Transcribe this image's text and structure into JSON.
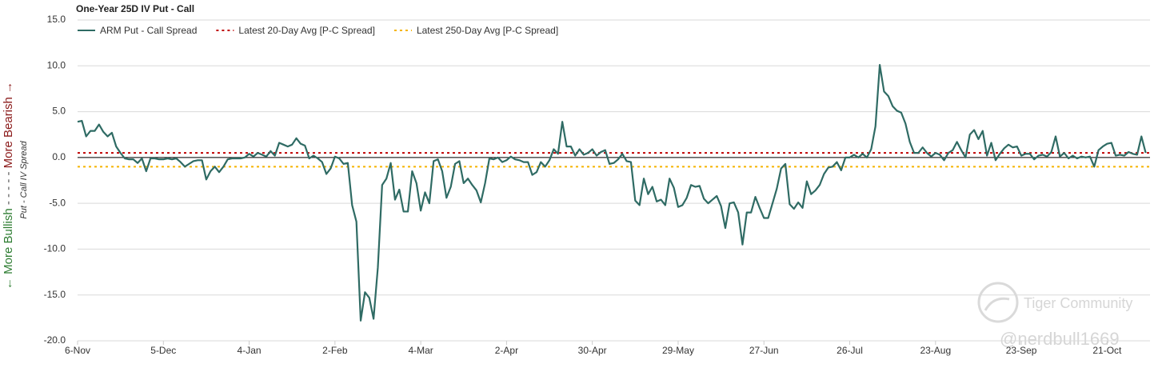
{
  "chart_data": {
    "type": "line",
    "title": "One-Year 25D IV Put - Call",
    "y_label": "Put - Call IV Spread",
    "bullish_label": "← More Bullish",
    "separator_label": "- - - - -",
    "bearish_label": "More Bearish →",
    "watermarks": [
      "Tiger Community",
      "@nerdbull1669"
    ],
    "grid": true,
    "ylim": [
      -20,
      15
    ],
    "yticks": [
      {
        "value": 15,
        "label": "15.0"
      },
      {
        "value": 10,
        "label": "10.0"
      },
      {
        "value": 5,
        "label": "5.0"
      },
      {
        "value": 0,
        "label": "0.0"
      },
      {
        "value": -5,
        "label": "-5.0"
      },
      {
        "value": -10,
        "label": "-10.0"
      },
      {
        "value": -15,
        "label": "-15.0"
      },
      {
        "value": -20,
        "label": "-20.0"
      }
    ],
    "categories": [
      "6-Nov",
      null,
      null,
      null,
      null,
      null,
      null,
      null,
      null,
      null,
      null,
      null,
      null,
      null,
      null,
      null,
      null,
      null,
      null,
      null,
      "5-Dec",
      null,
      null,
      null,
      null,
      null,
      null,
      null,
      null,
      null,
      null,
      null,
      null,
      null,
      null,
      null,
      null,
      null,
      null,
      null,
      "4-Jan",
      null,
      null,
      null,
      null,
      null,
      null,
      null,
      null,
      null,
      null,
      null,
      null,
      null,
      null,
      null,
      null,
      null,
      null,
      null,
      "2-Feb",
      null,
      null,
      null,
      null,
      null,
      null,
      null,
      null,
      null,
      null,
      null,
      null,
      null,
      null,
      null,
      null,
      null,
      null,
      null,
      "4-Mar",
      null,
      null,
      null,
      null,
      null,
      null,
      null,
      null,
      null,
      null,
      null,
      null,
      null,
      null,
      null,
      null,
      null,
      null,
      null,
      "2-Apr",
      null,
      null,
      null,
      null,
      null,
      null,
      null,
      null,
      null,
      null,
      null,
      null,
      null,
      null,
      null,
      null,
      null,
      null,
      null,
      "30-Apr",
      null,
      null,
      null,
      null,
      null,
      null,
      null,
      null,
      null,
      null,
      null,
      null,
      null,
      null,
      null,
      null,
      null,
      null,
      null,
      "29-May",
      null,
      null,
      null,
      null,
      null,
      null,
      null,
      null,
      null,
      null,
      null,
      null,
      null,
      null,
      null,
      null,
      null,
      null,
      null,
      "27-Jun",
      null,
      null,
      null,
      null,
      null,
      null,
      null,
      null,
      null,
      null,
      null,
      null,
      null,
      null,
      null,
      null,
      null,
      null,
      null,
      "26-Jul",
      null,
      null,
      null,
      null,
      null,
      null,
      null,
      null,
      null,
      null,
      null,
      null,
      null,
      null,
      null,
      null,
      null,
      null,
      null,
      "23-Aug",
      null,
      null,
      null,
      null,
      null,
      null,
      null,
      null,
      null,
      null,
      null,
      null,
      null,
      null,
      null,
      null,
      null,
      null,
      null,
      "23-Sep",
      null,
      null,
      null,
      null,
      null,
      null,
      null,
      null,
      null,
      null,
      null,
      null,
      null,
      null,
      null,
      null,
      null,
      null,
      null,
      "21-Oct",
      null,
      null,
      null,
      null,
      null,
      null,
      null,
      null,
      null
    ],
    "series": [
      {
        "name": "ARM Put - Call Spread",
        "color": "#2f6b64",
        "values": [
          3.9,
          4.0,
          2.3,
          2.9,
          2.9,
          3.6,
          2.8,
          2.3,
          2.7,
          1.2,
          0.5,
          -0.1,
          -0.2,
          -0.2,
          -0.6,
          -0.1,
          -1.5,
          -0.1,
          -0.1,
          -0.2,
          -0.2,
          -0.1,
          -0.2,
          -0.1,
          -0.5,
          -1.0,
          -0.7,
          -0.4,
          -0.3,
          -0.3,
          -2.4,
          -1.5,
          -1.0,
          -1.6,
          -1.0,
          -0.2,
          -0.1,
          -0.1,
          -0.1,
          0.0,
          0.4,
          0.1,
          0.5,
          0.3,
          0.1,
          0.7,
          0.2,
          1.6,
          1.4,
          1.2,
          1.4,
          2.1,
          1.5,
          1.3,
          -0.1,
          0.2,
          -0.1,
          -0.5,
          -1.8,
          -1.2,
          0.1,
          -0.1,
          -0.7,
          -0.6,
          -5.2,
          -7.0,
          -17.8,
          -14.7,
          -15.3,
          -17.6,
          -12.0,
          -3.0,
          -2.3,
          -0.6,
          -4.6,
          -3.5,
          -5.9,
          -5.9,
          -1.5,
          -2.8,
          -5.8,
          -3.8,
          -5.0,
          -0.4,
          -0.2,
          -1.5,
          -4.4,
          -3.2,
          -0.7,
          -0.4,
          -2.8,
          -2.3,
          -3.0,
          -3.6,
          -4.9,
          -2.8,
          -0.1,
          -0.2,
          0.0,
          -0.5,
          -0.3,
          0.1,
          -0.2,
          -0.3,
          -0.5,
          -0.5,
          -1.9,
          -1.6,
          -0.5,
          -1.0,
          -0.3,
          0.9,
          0.4,
          3.9,
          1.2,
          1.2,
          0.2,
          0.9,
          0.3,
          0.5,
          0.9,
          0.2,
          0.6,
          0.8,
          -0.7,
          -0.6,
          -0.2,
          0.4,
          -0.4,
          -0.5,
          -4.7,
          -5.2,
          -2.3,
          -4.0,
          -3.2,
          -4.8,
          -4.6,
          -5.2,
          -2.3,
          -3.3,
          -5.4,
          -5.2,
          -4.4,
          -3.0,
          -3.2,
          -3.1,
          -4.5,
          -5.0,
          -4.6,
          -4.2,
          -5.3,
          -7.7,
          -5.0,
          -4.9,
          -6.0,
          -9.5,
          -6.0,
          -6.0,
          -4.3,
          -5.5,
          -6.6,
          -6.6,
          -5.0,
          -3.4,
          -1.2,
          -0.7,
          -5.1,
          -5.6,
          -4.9,
          -5.5,
          -2.6,
          -4.0,
          -3.6,
          -3.0,
          -1.8,
          -1.1,
          -1.0,
          -0.5,
          -1.4,
          0.0,
          0.0,
          0.3,
          0.0,
          0.4,
          0.0,
          0.9,
          3.4,
          10.1,
          7.2,
          6.7,
          5.6,
          5.1,
          4.9,
          3.7,
          1.7,
          0.5,
          0.5,
          1.1,
          0.5,
          0.1,
          0.5,
          0.3,
          -0.3,
          0.5,
          0.8,
          1.7,
          0.8,
          0.0,
          2.5,
          3.0,
          2.0,
          2.9,
          0.2,
          1.6,
          -0.3,
          0.4,
          1.0,
          1.4,
          1.1,
          1.2,
          0.2,
          0.4,
          0.4,
          -0.2,
          0.2,
          0.3,
          0.1,
          0.6,
          2.3,
          0.1,
          0.5,
          -0.1,
          0.2,
          -0.1,
          0.1,
          0.0,
          0.1,
          -1.0,
          0.8,
          1.2,
          1.5,
          1.6,
          0.2,
          0.3,
          0.2,
          0.6,
          0.4,
          0.3,
          2.3,
          0.5
        ]
      }
    ],
    "reference_lines": [
      {
        "name": "Latest 20-Day Avg [P-C Spread]",
        "color": "#c00000",
        "value": 0.5
      },
      {
        "name": "Latest 250-Day Avg [P-C Spread]",
        "color": "#f5b400",
        "value": -1.0
      }
    ]
  }
}
